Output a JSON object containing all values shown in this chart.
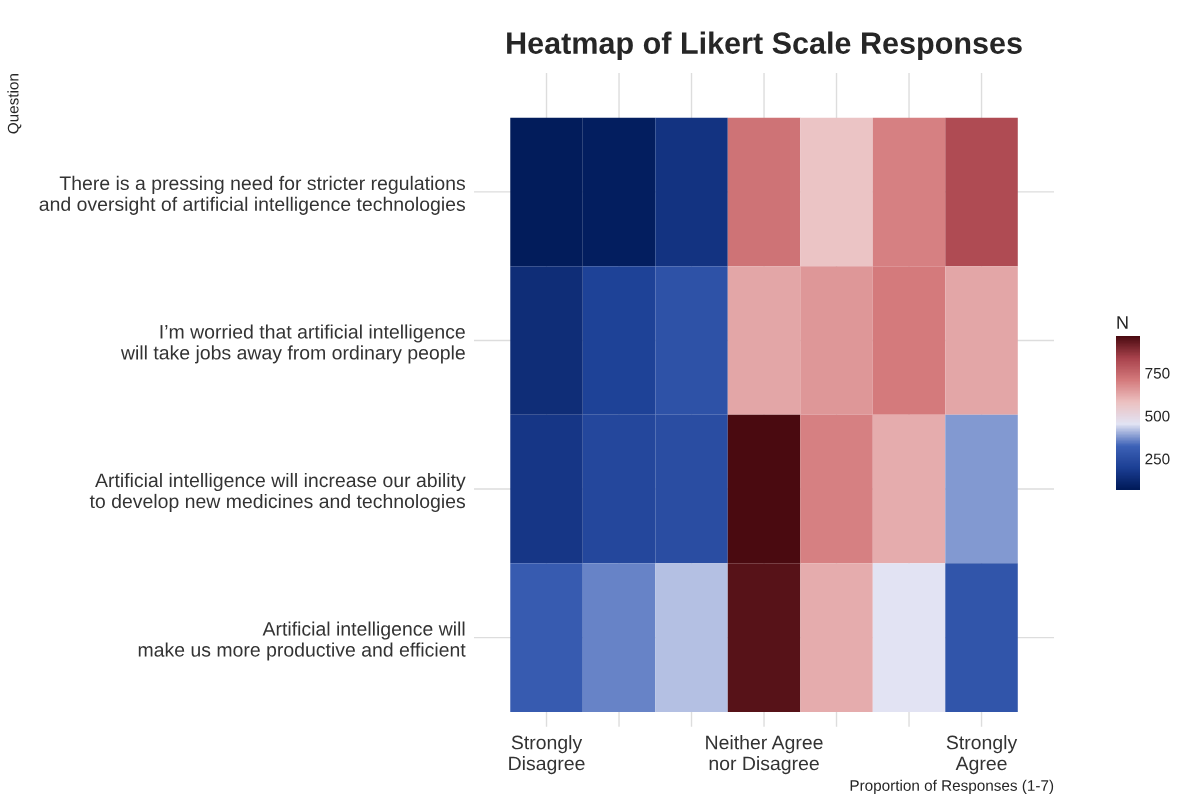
{
  "chart_data": {
    "type": "heatmap",
    "title": "Heatmap of Likert Scale Responses",
    "xlabel": "Proportion of Responses (1-7)",
    "ylabel": "Question",
    "clabel": "N",
    "categories": [
      "Strongly\nDisagree",
      null,
      null,
      "Neither Agree\nnor Disagree",
      null,
      null,
      "Strongly\nAgree"
    ],
    "y_categories": [
      "There is a pressing need for stricter regulations\nand oversight of artificial intelligence technologies",
      "I’m worried that artificial intelligence\nwill take jobs away from ordinary people",
      "Artificial intelligence will increase our ability\nto develop new medicines and technologies",
      "Artificial intelligence will\nmake us more productive and efficient"
    ],
    "cells": [
      [
        70,
        75,
        150,
        720,
        560,
        690,
        810
      ],
      [
        130,
        200,
        260,
        620,
        650,
        700,
        620
      ],
      [
        160,
        220,
        240,
        960,
        690,
        610,
        370
      ],
      [
        290,
        350,
        410,
        940,
        610,
        450,
        270
      ]
    ],
    "clim": [
      60,
      960
    ],
    "cticks": [
      250,
      500,
      750
    ],
    "grid": true
  }
}
